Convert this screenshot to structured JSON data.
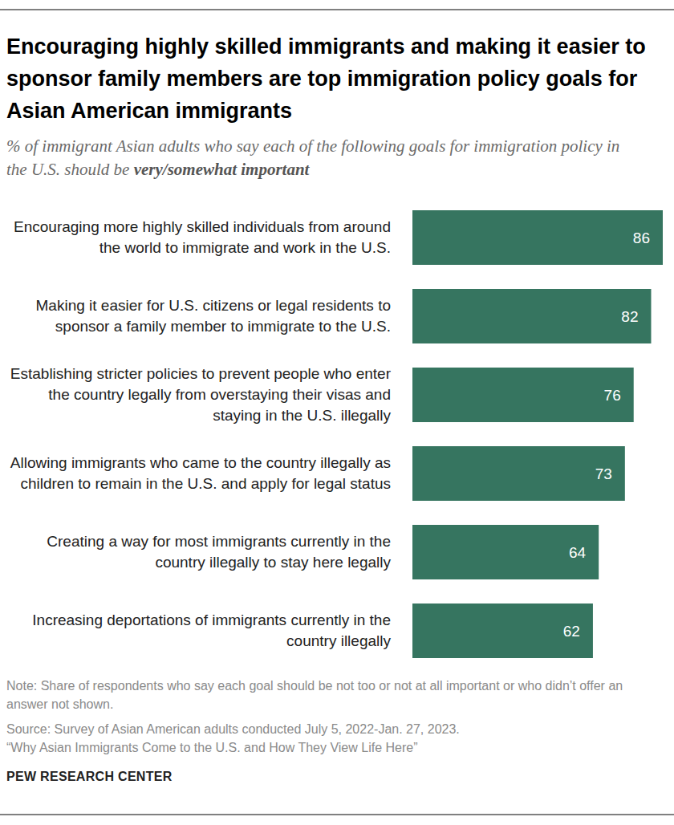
{
  "chart_data": {
    "type": "bar",
    "orientation": "horizontal",
    "title": "Encouraging highly skilled immigrants and making it easier to sponsor family members are top immigration policy goals for Asian American immigrants",
    "subtitle": [
      "% of immigrant Asian adults who say each of the following goals for immigration policy in the U.S. should be ",
      "very/somewhat important"
    ],
    "categories": [
      "Encouraging more highly skilled individuals from around the world to immigrate and work in the U.S.",
      "Making it easier for U.S. citizens or legal residents to sponsor a family member to immigrate to the U.S.",
      "Establishing stricter policies to prevent people who enter the country legally from overstaying their visas and staying in the U.S. illegally",
      "Allowing immigrants who came to the country illegally as children to remain in the U.S. and apply for legal status",
      "Creating a way for most immigrants currently in the country illegally to stay here legally",
      "Increasing deportations of immigrants currently in the country illegally"
    ],
    "values": [
      86,
      82,
      76,
      73,
      64,
      62
    ],
    "color": "#367560",
    "xlim": [
      0,
      86
    ],
    "data_labels": true,
    "tick_labels": false,
    "grid": false,
    "note": "Note: Share of respondents who say each goal should be not too or not at all important or who didn’t offer an answer not shown.",
    "source": [
      "Source: Survey of Asian American adults conducted July 5, 2022-Jan. 27, 2023.",
      "“Why Asian Immigrants Come to the U.S. and How They View Life Here”"
    ],
    "credit": "PEW RESEARCH CENTER"
  }
}
